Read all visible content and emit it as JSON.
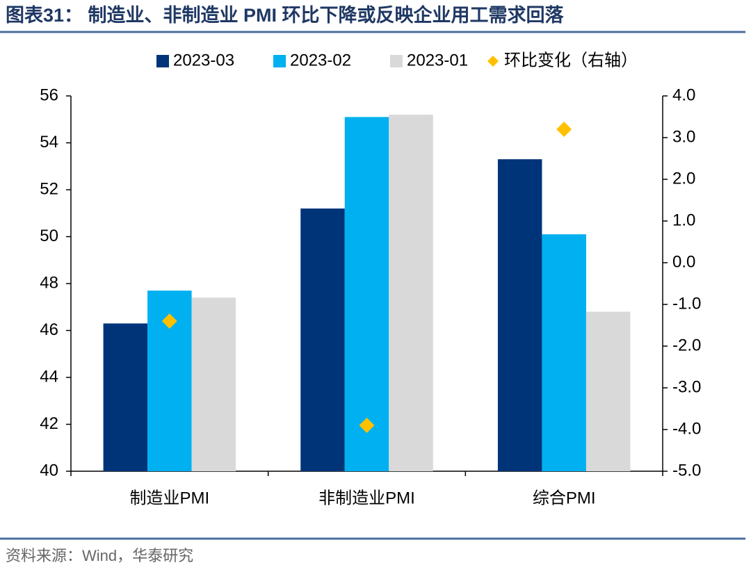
{
  "chart_data": {
    "type": "bar",
    "title": "图表31： 制造业、非制造业 PMI 环比下降或反映企业用工需求回落",
    "source": "资料来源：Wind，华泰研究",
    "categories": [
      "制造业PMI",
      "非制造业PMI",
      "综合PMI"
    ],
    "series": [
      {
        "name": "2023-03",
        "color": "#003478",
        "values": [
          46.3,
          51.2,
          53.3
        ]
      },
      {
        "name": "2023-02",
        "color": "#00b0f0",
        "values": [
          47.7,
          55.1,
          50.1
        ]
      },
      {
        "name": "2023-01",
        "color": "#d9d9d9",
        "values": [
          47.4,
          55.2,
          46.8
        ]
      },
      {
        "name": "环比变化（右轴）",
        "color": "#ffc000",
        "type": "scatter",
        "marker": "diamond",
        "axis": "y2",
        "values": [
          -1.4,
          -3.9,
          3.2
        ]
      }
    ],
    "ylim": [
      40,
      56
    ],
    "yticks": [
      40,
      42,
      44,
      46,
      48,
      50,
      52,
      54,
      56
    ],
    "y2lim": [
      -5,
      4
    ],
    "y2ticks": [
      {
        "value": -5,
        "label": "-5.0"
      },
      {
        "value": -4,
        "label": "-4.0"
      },
      {
        "value": -3,
        "label": "-3.0"
      },
      {
        "value": -2,
        "label": "-2.0"
      },
      {
        "value": -1,
        "label": "-1.0"
      },
      {
        "value": 0,
        "label": "0.0"
      },
      {
        "value": 1,
        "label": "1.0"
      },
      {
        "value": 2,
        "label": "2.0"
      },
      {
        "value": 3,
        "label": "3.0"
      },
      {
        "value": 4,
        "label": "4.0"
      }
    ],
    "grid": false,
    "legend": "top"
  }
}
